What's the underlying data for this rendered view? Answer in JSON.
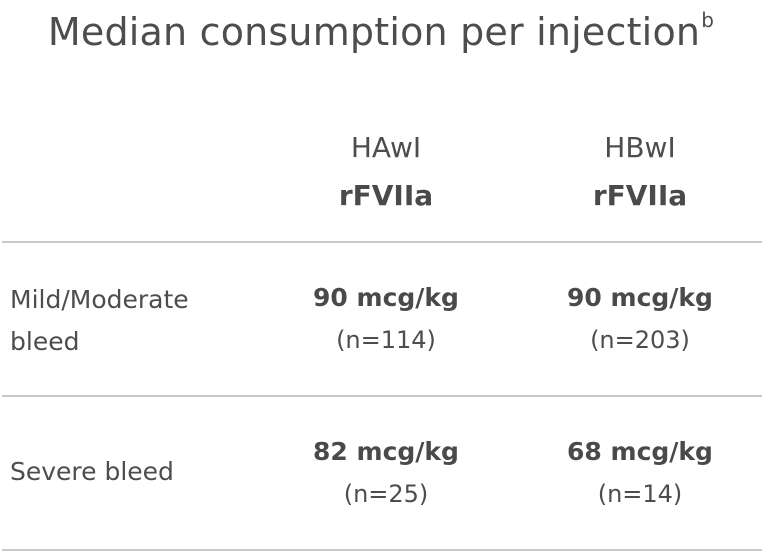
{
  "title": {
    "main": "Median consumption per injection",
    "sup": "b"
  },
  "columns": [
    {
      "group": "HAwI",
      "drug": "rFVIIa"
    },
    {
      "group": "HBwI",
      "drug": "rFVIIa"
    }
  ],
  "rows": [
    {
      "label_line1": "Mild/Moderate",
      "label_line2": "bleed",
      "cells": [
        {
          "dose": "90 mcg/kg",
          "n": "(n=114)"
        },
        {
          "dose": "90 mcg/kg",
          "n": "(n=203)"
        }
      ]
    },
    {
      "label_line1": "Severe bleed",
      "cells": [
        {
          "dose": "82 mcg/kg",
          "n": "(n=25)"
        },
        {
          "dose": "68 mcg/kg",
          "n": "(n=14)"
        }
      ]
    }
  ]
}
